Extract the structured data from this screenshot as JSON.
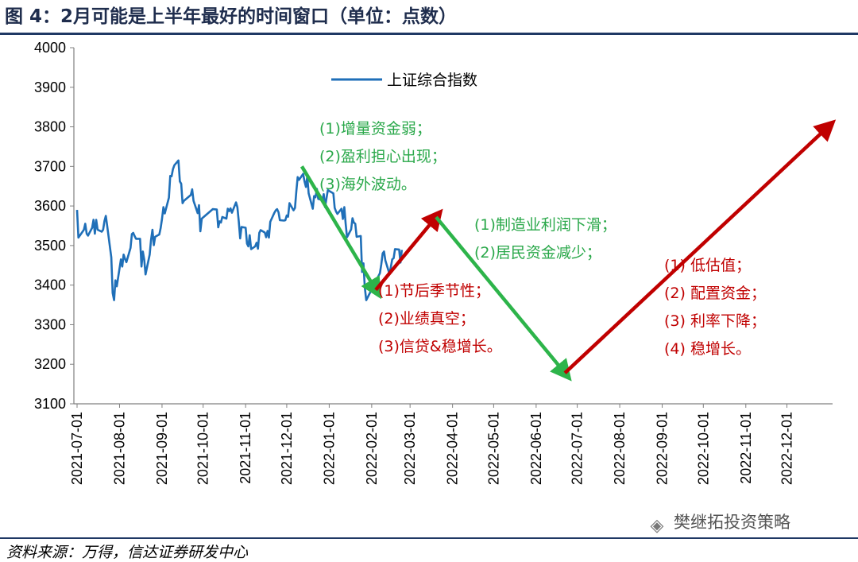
{
  "header": {
    "title": "图 4：2月可能是上半年最好的时间窗口（单位：点数）"
  },
  "footer": {
    "source": "资料来源：万得，信达证券研发中心",
    "watermark": "樊继拓投资策略",
    "watermark_icon": "wechat-icon"
  },
  "colors": {
    "series": "#1f6fb8",
    "green": "#2db44a",
    "red": "#c00000",
    "green_text": "#2aa84a",
    "red_text": "#c00000",
    "rule": "#1f3864"
  },
  "chart_data": {
    "type": "line",
    "title": "",
    "ylim": [
      3100,
      4000
    ],
    "yticks": [
      "4000",
      "3900",
      "3800",
      "3700",
      "3600",
      "3500",
      "3400",
      "3300",
      "3200",
      "3100"
    ],
    "xticks": [
      "2021-07-01",
      "2021-08-01",
      "2021-09-01",
      "2021-10-01",
      "2021-11-01",
      "2021-12-01",
      "2022-01-01",
      "2022-02-01",
      "2022-03-01",
      "2022-04-01",
      "2022-05-01",
      "2022-06-01",
      "2022-07-01",
      "2022-08-01",
      "2022-09-01",
      "2022-10-01",
      "2022-11-01",
      "2022-12-01"
    ],
    "grid": false,
    "legend": {
      "position": "top-center",
      "entries": [
        "上证综合指数"
      ]
    },
    "series": [
      {
        "name": "上证综合指数",
        "points": [
          [
            "2021-07-01",
            3590
          ],
          [
            "2021-07-02",
            3520
          ],
          [
            "2021-07-05",
            3535
          ],
          [
            "2021-07-06",
            3540
          ],
          [
            "2021-07-07",
            3555
          ],
          [
            "2021-07-08",
            3530
          ],
          [
            "2021-07-09",
            3525
          ],
          [
            "2021-07-12",
            3545
          ],
          [
            "2021-07-13",
            3565
          ],
          [
            "2021-07-14",
            3530
          ],
          [
            "2021-07-15",
            3565
          ],
          [
            "2021-07-16",
            3540
          ],
          [
            "2021-07-19",
            3535
          ],
          [
            "2021-07-20",
            3540
          ],
          [
            "2021-07-21",
            3562
          ],
          [
            "2021-07-22",
            3575
          ],
          [
            "2021-07-23",
            3550
          ],
          [
            "2021-07-26",
            3470
          ],
          [
            "2021-07-27",
            3380
          ],
          [
            "2021-07-28",
            3362
          ],
          [
            "2021-07-29",
            3412
          ],
          [
            "2021-07-30",
            3397
          ],
          [
            "2021-08-02",
            3465
          ],
          [
            "2021-08-03",
            3447
          ],
          [
            "2021-08-04",
            3477
          ],
          [
            "2021-08-05",
            3466
          ],
          [
            "2021-08-06",
            3458
          ],
          [
            "2021-08-09",
            3494
          ],
          [
            "2021-08-10",
            3529
          ],
          [
            "2021-08-11",
            3532
          ],
          [
            "2021-08-12",
            3524
          ],
          [
            "2021-08-13",
            3517
          ],
          [
            "2021-08-16",
            3517
          ],
          [
            "2021-08-17",
            3447
          ],
          [
            "2021-08-18",
            3485
          ],
          [
            "2021-08-19",
            3465
          ],
          [
            "2021-08-20",
            3427
          ],
          [
            "2021-08-23",
            3477
          ],
          [
            "2021-08-24",
            3514
          ],
          [
            "2021-08-25",
            3540
          ],
          [
            "2021-08-26",
            3501
          ],
          [
            "2021-08-27",
            3522
          ],
          [
            "2021-08-30",
            3528
          ],
          [
            "2021-08-31",
            3544
          ],
          [
            "2021-09-01",
            3567
          ],
          [
            "2021-09-02",
            3597
          ],
          [
            "2021-09-03",
            3581
          ],
          [
            "2021-09-06",
            3621
          ],
          [
            "2021-09-07",
            3676
          ],
          [
            "2021-09-08",
            3675
          ],
          [
            "2021-09-09",
            3693
          ],
          [
            "2021-09-10",
            3703
          ],
          [
            "2021-09-13",
            3715
          ],
          [
            "2021-09-14",
            3662
          ],
          [
            "2021-09-15",
            3656
          ],
          [
            "2021-09-16",
            3607
          ],
          [
            "2021-09-17",
            3613
          ],
          [
            "2021-09-22",
            3628
          ],
          [
            "2021-09-23",
            3642
          ],
          [
            "2021-09-24",
            3613
          ],
          [
            "2021-09-27",
            3582
          ],
          [
            "2021-09-28",
            3602
          ],
          [
            "2021-09-29",
            3536
          ],
          [
            "2021-09-30",
            3568
          ],
          [
            "2021-10-08",
            3592
          ],
          [
            "2021-10-11",
            3591
          ],
          [
            "2021-10-12",
            3546
          ],
          [
            "2021-10-13",
            3561
          ],
          [
            "2021-10-14",
            3558
          ],
          [
            "2021-10-15",
            3572
          ],
          [
            "2021-10-18",
            3568
          ],
          [
            "2021-10-19",
            3593
          ],
          [
            "2021-10-20",
            3587
          ],
          [
            "2021-10-21",
            3594
          ],
          [
            "2021-10-22",
            3583
          ],
          [
            "2021-10-25",
            3609
          ],
          [
            "2021-10-26",
            3597
          ],
          [
            "2021-10-27",
            3562
          ],
          [
            "2021-10-28",
            3518
          ],
          [
            "2021-10-29",
            3547
          ],
          [
            "2021-11-01",
            3545
          ],
          [
            "2021-11-02",
            3505
          ],
          [
            "2021-11-03",
            3498
          ],
          [
            "2021-11-04",
            3526
          ],
          [
            "2021-11-05",
            3491
          ],
          [
            "2021-11-08",
            3498
          ],
          [
            "2021-11-09",
            3507
          ],
          [
            "2021-11-10",
            3492
          ],
          [
            "2021-11-11",
            3532
          ],
          [
            "2021-11-12",
            3539
          ],
          [
            "2021-11-15",
            3533
          ],
          [
            "2021-11-16",
            3521
          ],
          [
            "2021-11-17",
            3537
          ],
          [
            "2021-11-18",
            3520
          ],
          [
            "2021-11-19",
            3560
          ],
          [
            "2021-11-22",
            3583
          ],
          [
            "2021-11-23",
            3589
          ],
          [
            "2021-11-24",
            3592
          ],
          [
            "2021-11-25",
            3584
          ],
          [
            "2021-11-26",
            3564
          ],
          [
            "2021-11-29",
            3563
          ],
          [
            "2021-11-30",
            3564
          ],
          [
            "2021-12-01",
            3576
          ],
          [
            "2021-12-02",
            3573
          ],
          [
            "2021-12-03",
            3607
          ],
          [
            "2021-12-06",
            3589
          ],
          [
            "2021-12-07",
            3595
          ],
          [
            "2021-12-08",
            3637
          ],
          [
            "2021-12-09",
            3673
          ],
          [
            "2021-12-10",
            3666
          ],
          [
            "2021-12-13",
            3681
          ],
          [
            "2021-12-14",
            3662
          ],
          [
            "2021-12-15",
            3648
          ],
          [
            "2021-12-16",
            3675
          ],
          [
            "2021-12-17",
            3632
          ],
          [
            "2021-12-20",
            3593
          ],
          [
            "2021-12-21",
            3625
          ],
          [
            "2021-12-22",
            3622
          ],
          [
            "2021-12-23",
            3643
          ],
          [
            "2021-12-24",
            3618
          ],
          [
            "2021-12-27",
            3615
          ],
          [
            "2021-12-28",
            3630
          ],
          [
            "2021-12-29",
            3597
          ],
          [
            "2021-12-30",
            3619
          ],
          [
            "2021-12-31",
            3640
          ],
          [
            "2022-01-04",
            3632
          ],
          [
            "2022-01-05",
            3595
          ],
          [
            "2022-01-06",
            3586
          ],
          [
            "2022-01-07",
            3580
          ],
          [
            "2022-01-10",
            3593
          ],
          [
            "2022-01-11",
            3567
          ],
          [
            "2022-01-12",
            3597
          ],
          [
            "2022-01-13",
            3555
          ],
          [
            "2022-01-14",
            3521
          ],
          [
            "2022-01-17",
            3541
          ],
          [
            "2022-01-18",
            3569
          ],
          [
            "2022-01-19",
            3558
          ],
          [
            "2022-01-20",
            3555
          ],
          [
            "2022-01-21",
            3522
          ],
          [
            "2022-01-24",
            3524
          ],
          [
            "2022-01-25",
            3433
          ],
          [
            "2022-01-26",
            3455
          ],
          [
            "2022-01-27",
            3394
          ],
          [
            "2022-01-28",
            3362
          ],
          [
            "2022-02-07",
            3430
          ],
          [
            "2022-02-08",
            3452
          ],
          [
            "2022-02-09",
            3480
          ],
          [
            "2022-02-10",
            3485
          ],
          [
            "2022-02-11",
            3462
          ],
          [
            "2022-02-14",
            3428
          ],
          [
            "2022-02-15",
            3446
          ],
          [
            "2022-02-16",
            3465
          ],
          [
            "2022-02-17",
            3468
          ],
          [
            "2022-02-18",
            3491
          ],
          [
            "2022-02-21",
            3490
          ],
          [
            "2022-02-22",
            3457
          ],
          [
            "2022-02-23",
            3489
          ]
        ]
      }
    ],
    "arrows": [
      {
        "color": "green",
        "from": [
          "2021-12-12",
          3700
        ],
        "to": [
          "2022-02-04",
          3388
        ]
      },
      {
        "color": "red",
        "from": [
          "2022-02-04",
          3388
        ],
        "to": [
          "2022-03-20",
          3572
        ]
      },
      {
        "color": "green",
        "from": [
          "2022-03-20",
          3572
        ],
        "to": [
          "2022-06-22",
          3178
        ]
      },
      {
        "color": "red",
        "from": [
          "2022-06-22",
          3178
        ],
        "to": [
          "2022-12-31",
          3800
        ]
      }
    ],
    "annotations": [
      {
        "color": "green",
        "lines": [
          "(1)增量资金弱；",
          "(2)盈利担心出现；",
          "(3)海外波动。"
        ]
      },
      {
        "color": "green",
        "lines": [
          "(1)制造业利润下滑；",
          "(2)居民资金减少；"
        ]
      },
      {
        "color": "red",
        "lines": [
          "(1)节后季节性；",
          "(2)业绩真空；",
          "(3)信贷&稳增长。"
        ]
      },
      {
        "color": "red",
        "lines": [
          "(1) 低估值；",
          "(2) 配置资金；",
          "(3) 利率下降；",
          "(4) 稳增长。"
        ]
      }
    ]
  }
}
